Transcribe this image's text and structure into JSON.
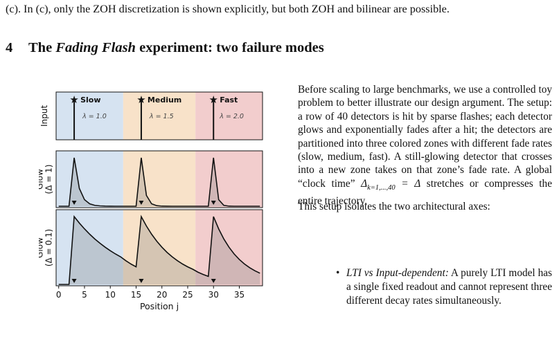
{
  "top_text": "(c). In (c), only the ZOH discretization is shown explicitly, but both ZOH and bilinear are possible.",
  "section": {
    "number": "4",
    "title_prefix": "The ",
    "title_italic": "Fading Flash",
    "title_suffix": " experiment: two failure modes"
  },
  "paragraph1": {
    "before_math": "Before scaling to large benchmarks, we use a controlled toy problem to better illustrate our design argument. The setup: a row of 40 detectors is hit by sparse flashes; each detector glows and exponentially fades after a hit; the detectors are partitioned into three colored zones with different fade rates (slow, medium, fast). A still-glowing detector that crosses into a new zone takes on that zone’s fade rate. A global “clock time” ",
    "math_base": "Δ",
    "math_sub": "k=1,...,40",
    "math_rest": " = Δ",
    "after_math": " stretches or compresses the entire trajectory."
  },
  "paragraph2": "This setup isolates the two architectural axes:",
  "bullet1": {
    "label": "LTI vs Input-dependent:",
    "text": " A purely LTI model has a single fixed readout and cannot represent three different decay rates simultaneously."
  },
  "chart_data": {
    "type": "line",
    "x_label": "Position j",
    "x_ticks": [
      5,
      10,
      15,
      20,
      25,
      30,
      35
    ],
    "xlim": [
      -0.5,
      39.5
    ],
    "zones": [
      {
        "name": "Slow",
        "lambda_label": "λ = 1.0",
        "start": -0.5,
        "end": 12.5,
        "color": "#d6e3f1"
      },
      {
        "name": "Medium",
        "lambda_label": "λ = 1.5",
        "start": 12.5,
        "end": 26.5,
        "color": "#f8e2c9"
      },
      {
        "name": "Fast",
        "lambda_label": "λ = 2.0",
        "start": 26.5,
        "end": 39.5,
        "color": "#f2cdcd"
      }
    ],
    "panels": [
      {
        "ylabel": [
          "Input"
        ],
        "type": "stem",
        "flashes": [
          3,
          16,
          30
        ]
      },
      {
        "ylabel": [
          "Glow",
          "(Δ = 1)"
        ],
        "type": "area",
        "x": [
          0,
          1,
          2,
          3,
          4,
          5,
          6,
          7,
          8,
          9,
          10,
          11,
          12,
          13,
          14,
          15,
          16,
          17,
          18,
          19,
          20,
          21,
          22,
          23,
          24,
          25,
          26,
          27,
          28,
          29,
          30,
          31,
          32,
          33,
          34,
          35,
          36,
          37,
          38,
          39
        ],
        "y": [
          0,
          0,
          0,
          1.0,
          0.368,
          0.135,
          0.05,
          0.018,
          0.007,
          0.002,
          0.001,
          0,
          0,
          0,
          0,
          0,
          1.0,
          0.223,
          0.05,
          0.011,
          0.002,
          0.001,
          0,
          0,
          0,
          0,
          0,
          0,
          0,
          0,
          1.0,
          0.135,
          0.018,
          0.002,
          0,
          0,
          0,
          0,
          0,
          0
        ],
        "markers": [
          3,
          16,
          30
        ]
      },
      {
        "ylabel": [
          "Glow",
          "(Δ = 0.1)"
        ],
        "type": "area",
        "x": [
          0,
          1,
          2,
          3,
          4,
          5,
          6,
          7,
          8,
          9,
          10,
          11,
          12,
          13,
          14,
          15,
          16,
          17,
          18,
          19,
          20,
          21,
          22,
          23,
          24,
          25,
          26,
          27,
          28,
          29,
          30,
          31,
          32,
          33,
          34,
          35,
          36,
          37,
          38,
          39
        ],
        "y": [
          0,
          0,
          0,
          1.0,
          0.905,
          0.819,
          0.741,
          0.67,
          0.607,
          0.549,
          0.497,
          0.449,
          0.407,
          0.35,
          0.301,
          0.259,
          1.0,
          0.861,
          0.741,
          0.638,
          0.549,
          0.472,
          0.407,
          0.35,
          0.301,
          0.259,
          0.223,
          0.18,
          0.147,
          0.119,
          1.0,
          0.819,
          0.67,
          0.549,
          0.449,
          0.368,
          0.301,
          0.247,
          0.202,
          0.165
        ],
        "markers": [
          3,
          16,
          30
        ]
      }
    ]
  }
}
